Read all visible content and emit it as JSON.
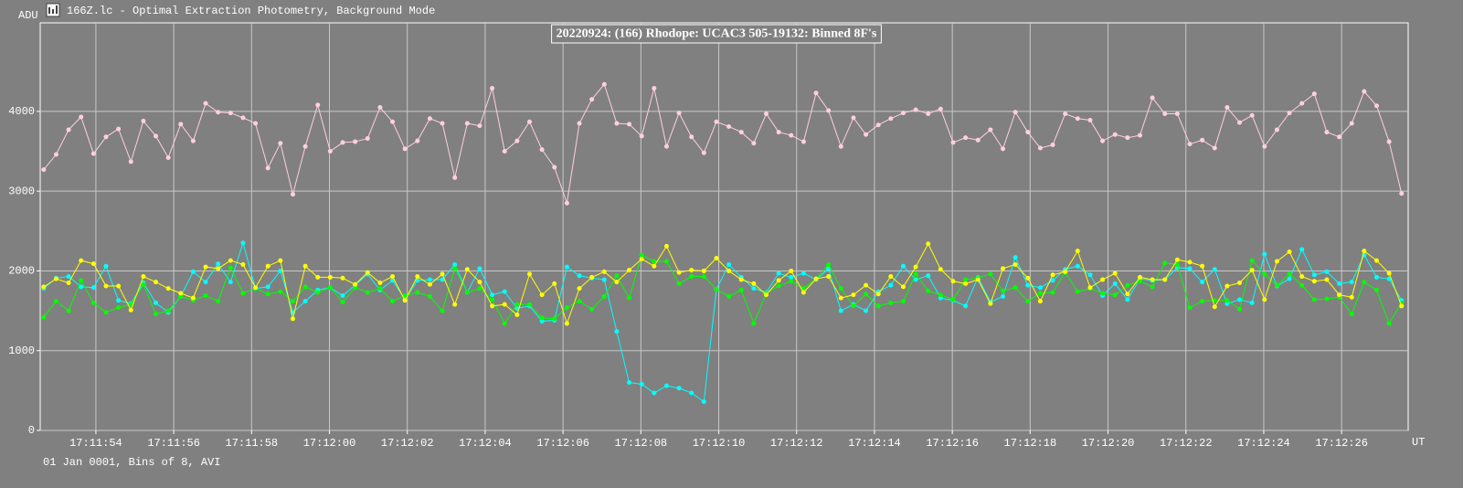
{
  "window_title": "166Z.lc - Optimal Extraction Photometry, Background Mode",
  "footer": "01 Jan 0001, Bins of 8, AVI",
  "chart_data": {
    "type": "line",
    "title": "20220924: (166) Rhodope: UCAC3 505-19132: Binned 8F's",
    "y_label": "ADU",
    "x_label": "UT",
    "grid": true,
    "xlim": [
      52.57,
      87.71
    ],
    "ylim": [
      0,
      5110
    ],
    "yticks": [
      0,
      1000,
      2000,
      3000,
      4000
    ],
    "xticks": [
      {
        "value": 54,
        "label": "17:11:54"
      },
      {
        "value": 56,
        "label": "17:11:56"
      },
      {
        "value": 58,
        "label": "17:11:58"
      },
      {
        "value": 60,
        "label": "17:12:00"
      },
      {
        "value": 62,
        "label": "17:12:02"
      },
      {
        "value": 64,
        "label": "17:12:04"
      },
      {
        "value": 66,
        "label": "17:12:06"
      },
      {
        "value": 68,
        "label": "17:12:08"
      },
      {
        "value": 70,
        "label": "17:12:10"
      },
      {
        "value": 72,
        "label": "17:12:12"
      },
      {
        "value": 74,
        "label": "17:12:14"
      },
      {
        "value": 76,
        "label": "17:12:16"
      },
      {
        "value": 78,
        "label": "17:12:18"
      },
      {
        "value": 80,
        "label": "17:12:20"
      },
      {
        "value": 82,
        "label": "17:12:22"
      },
      {
        "value": 84,
        "label": "17:12:24"
      },
      {
        "value": 86,
        "label": "17:12:26"
      }
    ],
    "x": [
      52.66,
      52.98,
      53.3,
      53.62,
      53.94,
      54.26,
      54.58,
      54.9,
      55.22,
      55.54,
      55.86,
      56.18,
      56.5,
      56.82,
      57.14,
      57.46,
      57.78,
      58.1,
      58.42,
      58.74,
      59.06,
      59.38,
      59.7,
      60.02,
      60.34,
      60.66,
      60.98,
      61.3,
      61.62,
      61.94,
      62.26,
      62.58,
      62.9,
      63.22,
      63.54,
      63.86,
      64.18,
      64.5,
      64.82,
      65.14,
      65.46,
      65.78,
      66.1,
      66.42,
      66.74,
      67.06,
      67.38,
      67.7,
      68.02,
      68.34,
      68.66,
      68.98,
      69.3,
      69.62,
      69.94,
      70.26,
      70.58,
      70.9,
      71.22,
      71.54,
      71.86,
      72.18,
      72.5,
      72.82,
      73.14,
      73.46,
      73.78,
      74.1,
      74.42,
      74.74,
      75.06,
      75.38,
      75.7,
      76.02,
      76.34,
      76.66,
      76.98,
      77.3,
      77.62,
      77.94,
      78.26,
      78.58,
      78.9,
      79.22,
      79.54,
      79.86,
      80.18,
      80.5,
      80.82,
      81.14,
      81.46,
      81.78,
      82.1,
      82.42,
      82.74,
      83.06,
      83.38,
      83.7,
      84.02,
      84.34,
      84.66,
      84.98,
      85.3,
      85.62,
      85.94,
      86.26,
      86.58,
      86.9,
      87.22,
      87.54
    ],
    "series": [
      {
        "color": "#ffd0dc",
        "values": [
          3270,
          3460,
          3770,
          3930,
          3470,
          3680,
          3780,
          3370,
          3880,
          3690,
          3420,
          3840,
          3630,
          4100,
          3990,
          3980,
          3920,
          3850,
          3290,
          3600,
          2960,
          3560,
          4080,
          3500,
          3610,
          3620,
          3660,
          4050,
          3870,
          3530,
          3630,
          3910,
          3850,
          3170,
          3850,
          3820,
          4290,
          3500,
          3630,
          3870,
          3520,
          3300,
          2850,
          3850,
          4150,
          4340,
          3850,
          3840,
          3690,
          4290,
          3560,
          3980,
          3680,
          3480,
          3870,
          3810,
          3740,
          3600,
          3970,
          3740,
          3700,
          3620,
          4230,
          4010,
          3560,
          3920,
          3710,
          3830,
          3910,
          3980,
          4020,
          3970,
          4030,
          3610,
          3670,
          3640,
          3770,
          3530,
          3990,
          3740,
          3540,
          3580,
          3970,
          3910,
          3890,
          3630,
          3710,
          3670,
          3700,
          4170,
          3970,
          3970,
          3590,
          3640,
          3540,
          4050,
          3860,
          3950,
          3560,
          3770,
          3980,
          4100,
          4220,
          3740,
          3680,
          3850,
          4250,
          4070,
          3620,
          2970
        ]
      },
      {
        "color": "#00ffff",
        "values": [
          1780,
          1910,
          1930,
          1800,
          1790,
          2060,
          1630,
          1590,
          1850,
          1600,
          1480,
          1680,
          1990,
          1860,
          2090,
          1860,
          2350,
          1780,
          1800,
          2000,
          1480,
          1620,
          1760,
          1790,
          1690,
          1820,
          1960,
          1760,
          1880,
          1640,
          1880,
          1890,
          1890,
          2080,
          1730,
          2030,
          1700,
          1740,
          1530,
          1560,
          1370,
          1380,
          2050,
          1940,
          1910,
          1890,
          1240,
          600,
          580,
          470,
          560,
          530,
          470,
          360,
          1770,
          2080,
          1920,
          1780,
          1730,
          1970,
          1920,
          1970,
          1890,
          2030,
          1500,
          1580,
          1500,
          1740,
          1820,
          2060,
          1890,
          1940,
          1660,
          1630,
          1560,
          1920,
          1610,
          1680,
          2170,
          1820,
          1790,
          1880,
          2020,
          2060,
          1950,
          1690,
          1840,
          1640,
          1900,
          1880,
          1890,
          2040,
          2030,
          1860,
          2020,
          1590,
          1640,
          1600,
          2210,
          1810,
          1900,
          2270,
          1950,
          1990,
          1840,
          1860,
          2200,
          1920,
          1900,
          1630
        ]
      },
      {
        "color": "#00ff00",
        "values": [
          1420,
          1620,
          1500,
          1880,
          1600,
          1480,
          1540,
          1580,
          1830,
          1460,
          1500,
          1680,
          1630,
          1690,
          1620,
          2040,
          1720,
          1780,
          1710,
          1740,
          1620,
          1800,
          1730,
          1790,
          1610,
          1790,
          1730,
          1780,
          1620,
          1690,
          1730,
          1680,
          1500,
          2030,
          1730,
          1780,
          1640,
          1340,
          1580,
          1580,
          1410,
          1400,
          1540,
          1620,
          1520,
          1680,
          1940,
          1660,
          2200,
          2120,
          2120,
          1840,
          1930,
          1930,
          1770,
          1680,
          1760,
          1340,
          1720,
          1810,
          1870,
          1780,
          1900,
          2080,
          1780,
          1560,
          1710,
          1560,
          1600,
          1620,
          1960,
          1750,
          1700,
          1640,
          1890,
          1910,
          1960,
          1750,
          1790,
          1620,
          1720,
          1730,
          1980,
          1740,
          1780,
          1720,
          1700,
          1820,
          1870,
          1800,
          2100,
          2080,
          1540,
          1620,
          1630,
          1630,
          1520,
          2130,
          1960,
          1820,
          1960,
          1820,
          1640,
          1650,
          1670,
          1460,
          1860,
          1760,
          1340,
          1600
        ]
      },
      {
        "color": "#ffff00",
        "values": [
          1800,
          1900,
          1850,
          2130,
          2090,
          1810,
          1810,
          1510,
          1930,
          1860,
          1780,
          1720,
          1660,
          2050,
          2030,
          2130,
          2080,
          1790,
          2060,
          2130,
          1400,
          2060,
          1920,
          1920,
          1910,
          1830,
          1980,
          1850,
          1930,
          1630,
          1930,
          1830,
          1960,
          1580,
          2020,
          1860,
          1560,
          1580,
          1450,
          1960,
          1700,
          1840,
          1340,
          1780,
          1920,
          1990,
          1860,
          2010,
          2150,
          2060,
          2310,
          1980,
          2010,
          2000,
          2160,
          2000,
          1890,
          1840,
          1700,
          1880,
          2000,
          1730,
          1900,
          1930,
          1660,
          1700,
          1820,
          1710,
          1930,
          1800,
          2050,
          2340,
          2020,
          1870,
          1840,
          1890,
          1590,
          2030,
          2080,
          1910,
          1620,
          1950,
          1990,
          2250,
          1790,
          1890,
          1970,
          1710,
          1920,
          1890,
          1890,
          2140,
          2110,
          2060,
          1550,
          1810,
          1850,
          2010,
          1640,
          2120,
          2240,
          1930,
          1870,
          1890,
          1700,
          1670,
          2250,
          2130,
          1970,
          1560
        ]
      }
    ]
  }
}
